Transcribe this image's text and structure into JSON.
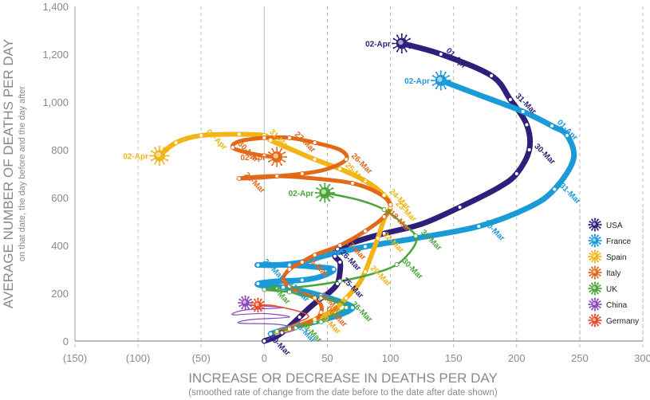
{
  "chart_data": {
    "type": "line",
    "title": "",
    "xlabel": "INCREASE OR DECREASE IN DEATHS PER DAY",
    "xsublabel": "(smoothed rate of change from the date before to the date after date shown)",
    "ylabel": "AVERAGE NUMBER OF DEATHS PER DAY",
    "ysublabel": "on that date, the day before and the day after",
    "xlim": [
      -150,
      300
    ],
    "ylim": [
      0,
      1400
    ],
    "xticks": [
      -150,
      -100,
      -50,
      0,
      50,
      100,
      150,
      200,
      250,
      300
    ],
    "xtick_labels": [
      "(150)",
      "(100)",
      "(50)",
      "0",
      "50",
      "100",
      "150",
      "200",
      "250",
      "300"
    ],
    "yticks": [
      0,
      200,
      400,
      600,
      800,
      1000,
      1200,
      1400
    ],
    "ytick_labels": [
      "0",
      "200",
      "400",
      "600",
      "800",
      "1,000",
      "1,200",
      "1,400"
    ],
    "grid": "vertical-dashed",
    "legend": "right",
    "series": [
      {
        "name": "USA",
        "color": "#2e1f7a",
        "points": [
          [
            0,
            0
          ],
          [
            8,
            15
          ],
          [
            14,
            35
          ],
          [
            20,
            60
          ],
          [
            28,
            100
          ],
          [
            36,
            140
          ],
          [
            44,
            175
          ],
          [
            52,
            205
          ],
          [
            58,
            240
          ],
          [
            60,
            290
          ],
          [
            60,
            330
          ],
          [
            56,
            355
          ],
          [
            58,
            385
          ],
          [
            75,
            420
          ],
          [
            95,
            450
          ],
          [
            125,
            490
          ],
          [
            155,
            560
          ],
          [
            185,
            640
          ],
          [
            200,
            700
          ],
          [
            210,
            800
          ],
          [
            208,
            905
          ],
          [
            195,
            1010
          ],
          [
            180,
            1110
          ],
          [
            140,
            1200
          ],
          [
            109,
            1245
          ]
        ],
        "labels": [
          {
            "i": 0,
            "t": "09-Mar"
          },
          {
            "i": 11,
            "t": "26-Mar"
          },
          {
            "i": 8,
            "t": "25-Mar"
          },
          {
            "i": 19,
            "t": "30-Mar"
          },
          {
            "i": 21,
            "t": "31-Mar"
          },
          {
            "i": 23,
            "t": "01-Apr"
          },
          {
            "i": 24,
            "t": "02-Apr"
          }
        ]
      },
      {
        "name": "France",
        "color": "#1a9ad6",
        "points": [
          [
            5,
            30
          ],
          [
            20,
            55
          ],
          [
            40,
            80
          ],
          [
            60,
            110
          ],
          [
            70,
            140
          ],
          [
            60,
            165
          ],
          [
            45,
            190
          ],
          [
            30,
            210
          ],
          [
            15,
            225
          ],
          [
            0,
            230
          ],
          [
            -5,
            240
          ],
          [
            10,
            250
          ],
          [
            30,
            255
          ],
          [
            45,
            270
          ],
          [
            55,
            300
          ],
          [
            40,
            310
          ],
          [
            20,
            318
          ],
          [
            0,
            318
          ],
          [
            -5,
            318
          ],
          [
            10,
            318
          ],
          [
            30,
            330
          ],
          [
            50,
            360
          ],
          [
            80,
            395
          ],
          [
            120,
            430
          ],
          [
            170,
            480
          ],
          [
            210,
            560
          ],
          [
            230,
            635
          ],
          [
            245,
            760
          ],
          [
            240,
            860
          ],
          [
            228,
            900
          ],
          [
            205,
            960
          ],
          [
            170,
            1030
          ],
          [
            140,
            1090
          ]
        ],
        "labels": [
          {
            "i": 1,
            "t": "18-Mar"
          },
          {
            "i": 8,
            "t": "21-Mar"
          },
          {
            "i": 18,
            "t": "27-Mar"
          },
          {
            "i": 24,
            "t": "30-Mar"
          },
          {
            "i": 26,
            "t": "31-Mar"
          },
          {
            "i": 29,
            "t": "01-Apr"
          },
          {
            "i": 32,
            "t": "02-Apr"
          }
        ]
      },
      {
        "name": "Spain",
        "color": "#f2b416",
        "points": [
          [
            10,
            35
          ],
          [
            25,
            60
          ],
          [
            40,
            90
          ],
          [
            55,
            130
          ],
          [
            65,
            180
          ],
          [
            75,
            240
          ],
          [
            80,
            290
          ],
          [
            85,
            360
          ],
          [
            90,
            430
          ],
          [
            95,
            510
          ],
          [
            100,
            560
          ],
          [
            95,
            610
          ],
          [
            80,
            670
          ],
          [
            60,
            720
          ],
          [
            40,
            760
          ],
          [
            20,
            805
          ],
          [
            5,
            840
          ],
          [
            0,
            860
          ],
          [
            -20,
            865
          ],
          [
            -50,
            860
          ],
          [
            -70,
            830
          ],
          [
            -83,
            775
          ]
        ],
        "labels": [
          {
            "i": 2,
            "t": "19-Mar"
          },
          {
            "i": 6,
            "t": "20-Mar"
          },
          {
            "i": 8,
            "t": "22-Mar"
          },
          {
            "i": 10,
            "t": "23-Mar"
          },
          {
            "i": 11,
            "t": "24-Mar"
          },
          {
            "i": 13,
            "t": "25-Mar"
          },
          {
            "i": 17,
            "t": "31-Mar"
          },
          {
            "i": 19,
            "t": "01-Apr"
          },
          {
            "i": 21,
            "t": "02-Apr"
          }
        ]
      },
      {
        "name": "Italy",
        "color": "#e2681a",
        "points": [
          [
            20,
            50
          ],
          [
            40,
            90
          ],
          [
            45,
            120
          ],
          [
            45,
            150
          ],
          [
            40,
            180
          ],
          [
            30,
            200
          ],
          [
            20,
            230
          ],
          [
            15,
            260
          ],
          [
            20,
            300
          ],
          [
            30,
            330
          ],
          [
            40,
            360
          ],
          [
            60,
            400
          ],
          [
            80,
            460
          ],
          [
            95,
            520
          ],
          [
            100,
            570
          ],
          [
            90,
            620
          ],
          [
            70,
            660
          ],
          [
            40,
            680
          ],
          [
            10,
            690
          ],
          [
            -10,
            685
          ],
          [
            -20,
            680
          ],
          [
            0,
            685
          ],
          [
            30,
            700
          ],
          [
            50,
            720
          ],
          [
            65,
            760
          ],
          [
            60,
            800
          ],
          [
            40,
            830
          ],
          [
            20,
            850
          ],
          [
            0,
            850
          ],
          [
            -20,
            835
          ],
          [
            -25,
            810
          ],
          [
            -15,
            790
          ],
          [
            0,
            775
          ],
          [
            10,
            770
          ]
        ],
        "labels": [
          {
            "i": 2,
            "t": "06-Mar"
          },
          {
            "i": 4,
            "t": "12-Mar"
          },
          {
            "i": 9,
            "t": "15-Mar"
          },
          {
            "i": 11,
            "t": "17-Mar"
          },
          {
            "i": 13,
            "t": "18-Mar"
          },
          {
            "i": 20,
            "t": "22-Mar"
          },
          {
            "i": 24,
            "t": "26-Mar"
          },
          {
            "i": 27,
            "t": "27-Mar"
          },
          {
            "i": 30,
            "t": "30-Mar"
          },
          {
            "i": 33,
            "t": "02-Apr"
          }
        ]
      },
      {
        "name": "UK",
        "color": "#4aa63a",
        "points": [
          [
            10,
            40
          ],
          [
            25,
            55
          ],
          [
            45,
            80
          ],
          [
            55,
            110
          ],
          [
            65,
            140
          ],
          [
            60,
            165
          ],
          [
            45,
            180
          ],
          [
            30,
            190
          ],
          [
            20,
            205
          ],
          [
            0,
            215
          ],
          [
            10,
            220
          ],
          [
            35,
            230
          ],
          [
            60,
            250
          ],
          [
            85,
            280
          ],
          [
            105,
            320
          ],
          [
            118,
            390
          ],
          [
            120,
            440
          ],
          [
            110,
            490
          ],
          [
            95,
            550
          ],
          [
            75,
            590
          ],
          [
            48,
            620
          ]
        ],
        "labels": [
          {
            "i": 1,
            "t": "19-Mar"
          },
          {
            "i": 4,
            "t": "26-Mar"
          },
          {
            "i": 9,
            "t": "28-Mar"
          },
          {
            "i": 14,
            "t": "30-Mar"
          },
          {
            "i": 16,
            "t": "31-Mar"
          },
          {
            "i": 20,
            "t": "02-Apr"
          }
        ]
      },
      {
        "name": "China",
        "color": "#8a4bb8",
        "points": [
          [
            0,
            0
          ],
          [
            10,
            25
          ],
          [
            25,
            50
          ],
          [
            10,
            70
          ],
          [
            -20,
            75
          ],
          [
            -10,
            90
          ],
          [
            20,
            100
          ],
          [
            0,
            115
          ],
          [
            -25,
            110
          ],
          [
            -15,
            130
          ],
          [
            15,
            140
          ],
          [
            -10,
            150
          ],
          [
            -15,
            160
          ]
        ],
        "labels": []
      },
      {
        "name": "Germany",
        "color": "#e84a28",
        "points": [
          [
            5,
            30
          ],
          [
            15,
            50
          ],
          [
            25,
            75
          ],
          [
            35,
            100
          ],
          [
            30,
            120
          ],
          [
            15,
            140
          ],
          [
            5,
            150
          ],
          [
            -5,
            150
          ]
        ],
        "labels": []
      }
    ]
  }
}
